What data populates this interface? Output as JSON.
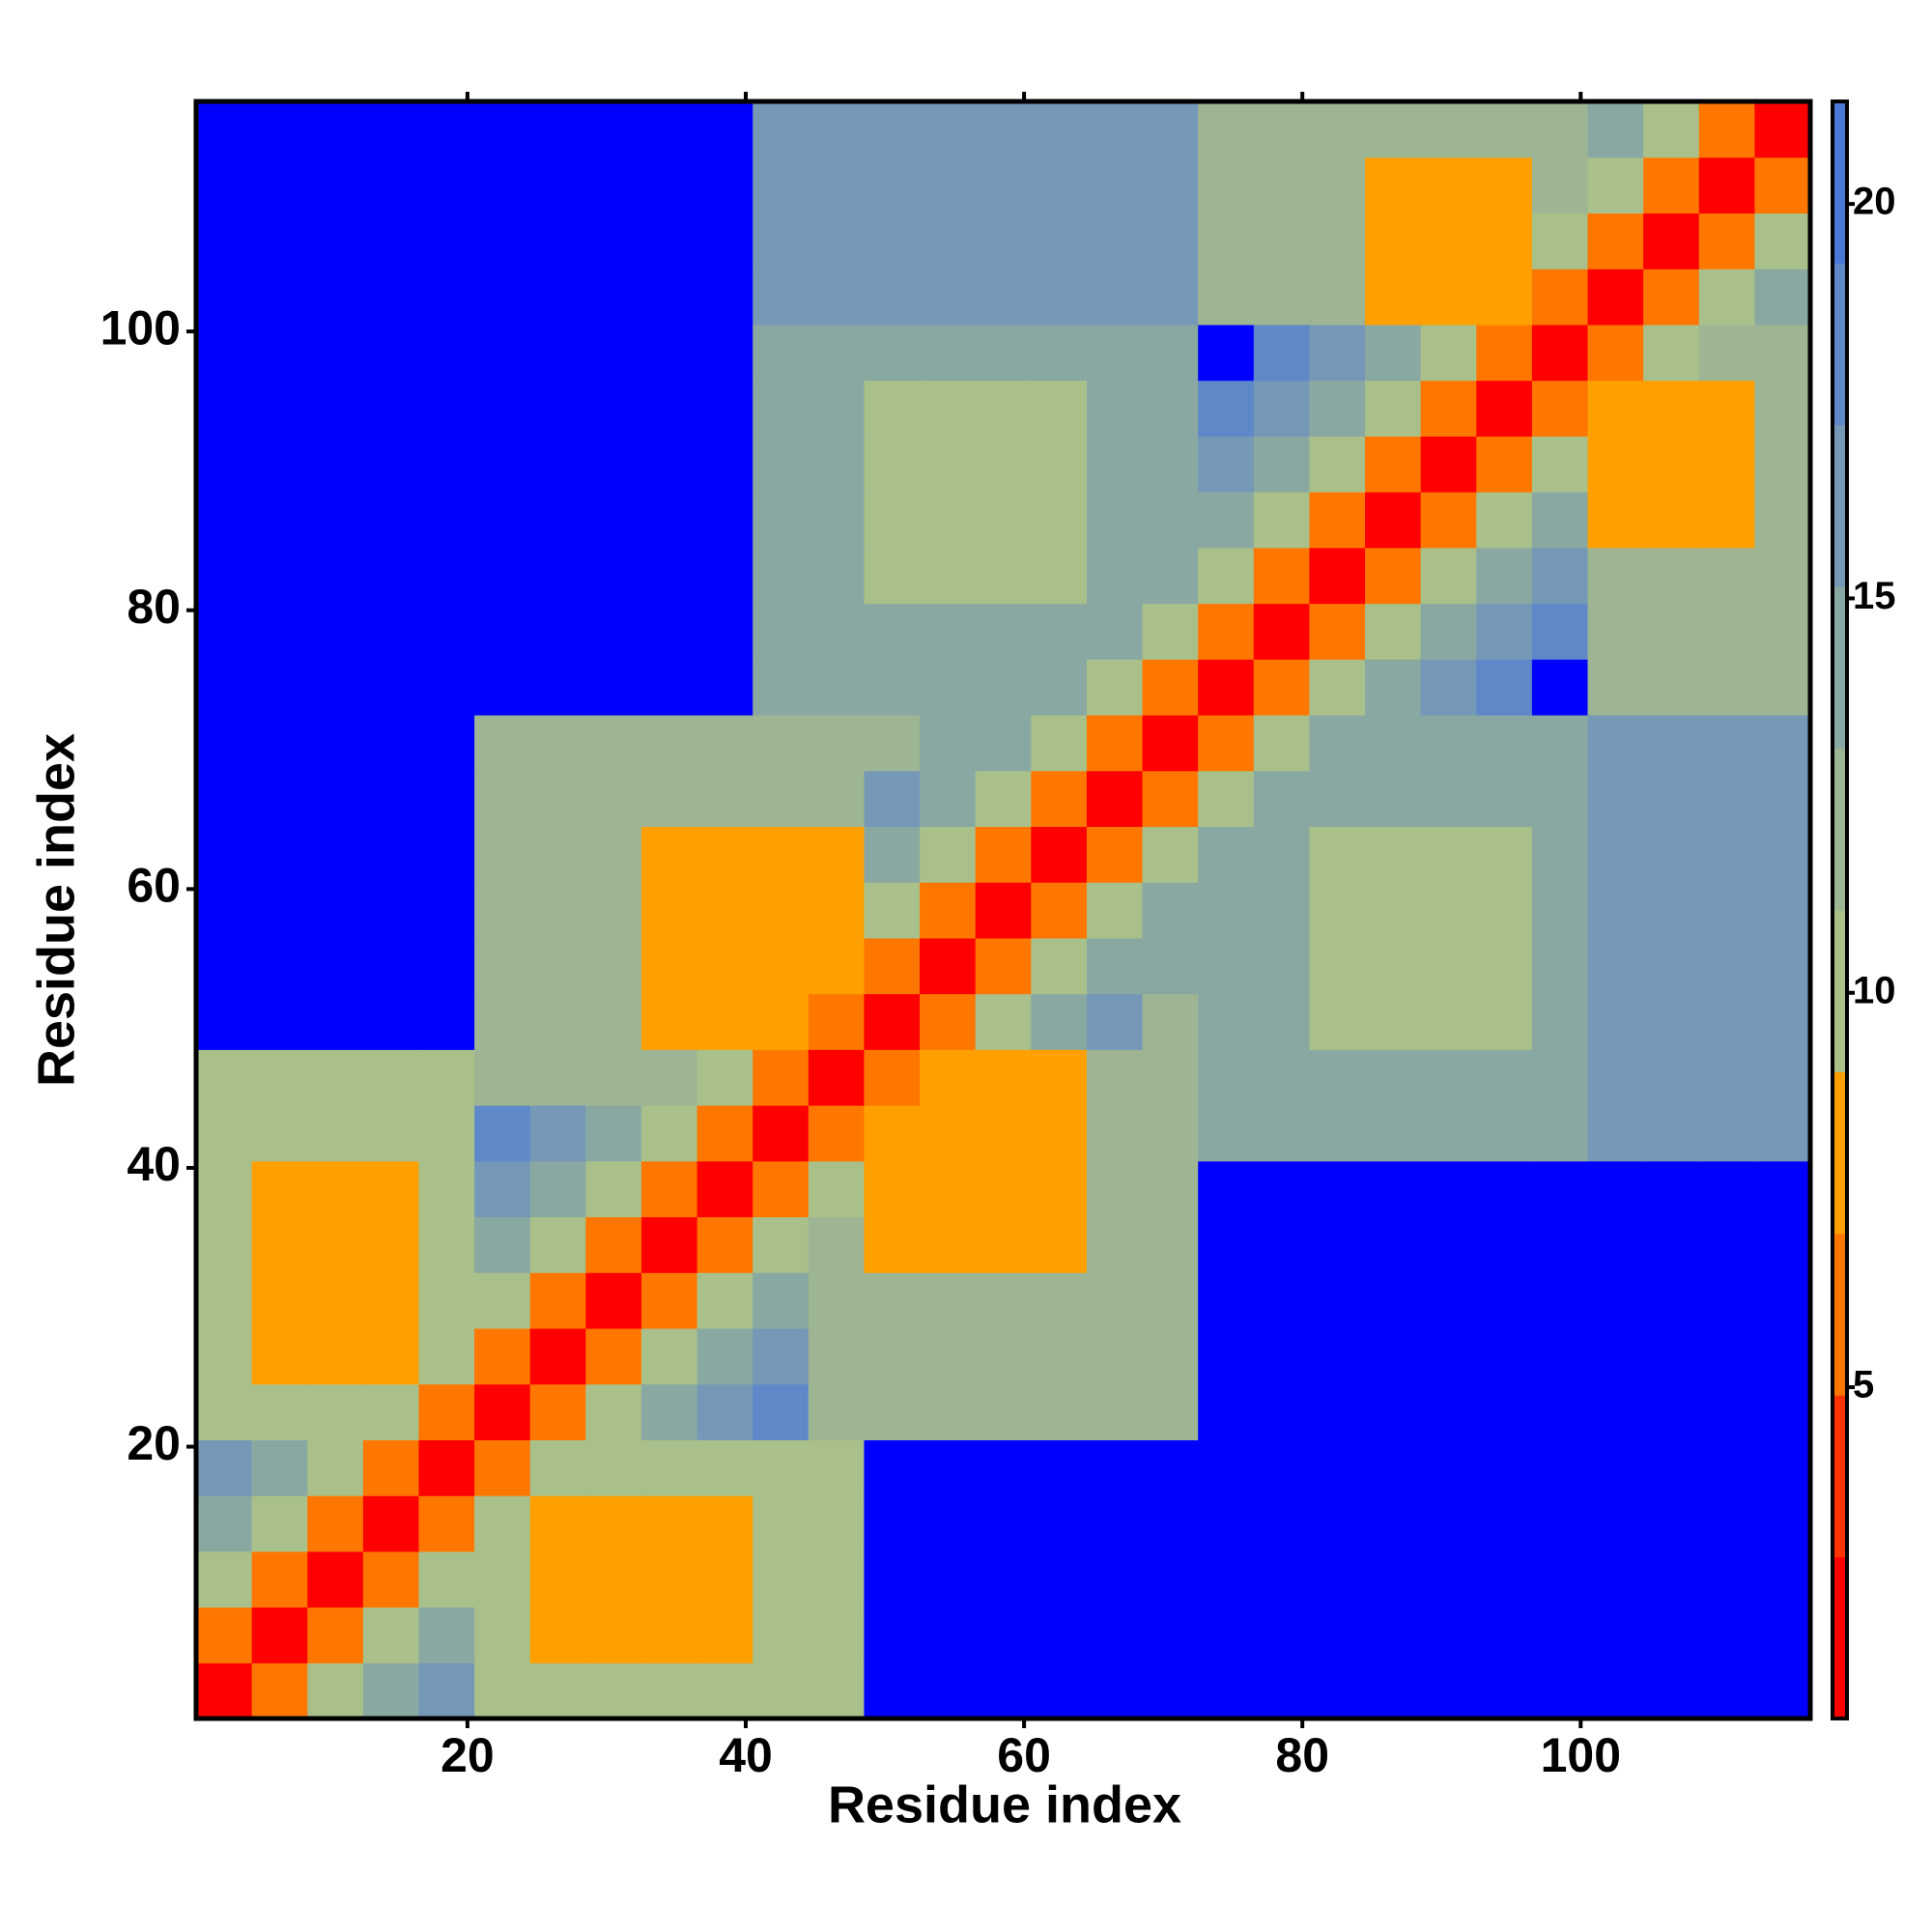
{
  "chart_data": {
    "type": "heatmap",
    "x_label": "Residue index",
    "y_label": "Residue index",
    "x": [
      2.5,
      6.5,
      10.5,
      14.5,
      18.5,
      22.5,
      26.5,
      30.5,
      34.5,
      38.5,
      42.5,
      46.5,
      50.5,
      54.5,
      58.5,
      62.5,
      66.5,
      70.5,
      74.5,
      78.5,
      82.5,
      86.5,
      90.5,
      94.5,
      98.5,
      102.5,
      106.5,
      110.5,
      114.5
    ],
    "y": [
      2.5,
      6.5,
      10.5,
      14.5,
      18.5,
      22.5,
      26.5,
      30.5,
      34.5,
      38.5,
      42.5,
      46.5,
      50.5,
      54.5,
      58.5,
      62.5,
      66.5,
      70.5,
      74.5,
      78.5,
      82.5,
      86.5,
      90.5,
      94.5,
      98.5,
      102.5,
      106.5,
      110.5,
      114.5
    ],
    "xlim": [
      0.5,
      116.5
    ],
    "ylim": [
      0.5,
      116.5
    ],
    "xticks": [
      20,
      40,
      60,
      80,
      100
    ],
    "yticks": [
      20,
      40,
      60,
      80,
      100
    ],
    "colorbar_lim": [
      0.8,
      21.3
    ],
    "colorbar_ticks": [
      5,
      10,
      15,
      20
    ],
    "colormap": [
      "#ff0000",
      "#ff3300",
      "#ff7700",
      "#ffa000",
      "#a9c08a",
      "#9db592",
      "#8aa8a2",
      "#7598b6",
      "#5f88c8",
      "#4a78d6"
    ],
    "over_color": "#0000ff",
    "values": [
      [
        2,
        6,
        10,
        14,
        17,
        11,
        11,
        11,
        11,
        11,
        11,
        11,
        22,
        22,
        22,
        22,
        22,
        22,
        22,
        22,
        22,
        22,
        22,
        22,
        22,
        22,
        22,
        22,
        22
      ],
      [
        6,
        2,
        6,
        10,
        14,
        11,
        8,
        8,
        8,
        8,
        11,
        11,
        22,
        22,
        22,
        22,
        22,
        22,
        22,
        22,
        22,
        22,
        22,
        22,
        22,
        22,
        22,
        22,
        22
      ],
      [
        10,
        6,
        2,
        6,
        10,
        11,
        8,
        8,
        8,
        8,
        11,
        11,
        22,
        22,
        22,
        22,
        22,
        22,
        22,
        22,
        22,
        22,
        22,
        22,
        22,
        22,
        22,
        22,
        22
      ],
      [
        14,
        10,
        6,
        2,
        6,
        10,
        8,
        8,
        8,
        8,
        11,
        11,
        22,
        22,
        22,
        22,
        22,
        22,
        22,
        22,
        22,
        22,
        22,
        22,
        22,
        22,
        22,
        22,
        22
      ],
      [
        17,
        14,
        10,
        6,
        2,
        6,
        10,
        11,
        11,
        11,
        11,
        11,
        22,
        22,
        22,
        22,
        22,
        22,
        22,
        22,
        22,
        22,
        22,
        22,
        22,
        22,
        22,
        22,
        22
      ],
      [
        11,
        11,
        11,
        10,
        6,
        2,
        6,
        10,
        14,
        17,
        19,
        13,
        13,
        13,
        13,
        13,
        13,
        13,
        22,
        22,
        22,
        22,
        22,
        22,
        22,
        22,
        22,
        22,
        22
      ],
      [
        11,
        8,
        8,
        8,
        10,
        6,
        2,
        6,
        10,
        14,
        17,
        13,
        13,
        13,
        13,
        13,
        13,
        13,
        22,
        22,
        22,
        22,
        22,
        22,
        22,
        22,
        22,
        22,
        22
      ],
      [
        11,
        8,
        8,
        8,
        11,
        10,
        6,
        2,
        6,
        10,
        14,
        13,
        13,
        13,
        13,
        13,
        13,
        13,
        22,
        22,
        22,
        22,
        22,
        22,
        22,
        22,
        22,
        22,
        22
      ],
      [
        11,
        8,
        8,
        8,
        11,
        14,
        10,
        6,
        2,
        6,
        10,
        13,
        9,
        9,
        9,
        9,
        13,
        13,
        22,
        22,
        22,
        22,
        22,
        22,
        22,
        22,
        22,
        22,
        22
      ],
      [
        11,
        8,
        8,
        8,
        11,
        17,
        14,
        10,
        6,
        2,
        6,
        10,
        9,
        9,
        9,
        9,
        13,
        13,
        22,
        22,
        22,
        22,
        22,
        22,
        22,
        22,
        22,
        22,
        22
      ],
      [
        11,
        11,
        11,
        11,
        11,
        19,
        17,
        14,
        10,
        6,
        2,
        6,
        9,
        9,
        9,
        9,
        13,
        13,
        14,
        14,
        14,
        14,
        14,
        14,
        14,
        17,
        17,
        17,
        17
      ],
      [
        11,
        11,
        11,
        11,
        11,
        13,
        13,
        13,
        13,
        10,
        6,
        2,
        6,
        9,
        9,
        9,
        13,
        13,
        14,
        14,
        14,
        14,
        14,
        14,
        14,
        17,
        17,
        17,
        17
      ],
      [
        22,
        22,
        22,
        22,
        22,
        13,
        13,
        13,
        9,
        9,
        9,
        6,
        2,
        6,
        10,
        14,
        17,
        13,
        14,
        14,
        11,
        11,
        11,
        11,
        14,
        17,
        17,
        17,
        17
      ],
      [
        22,
        22,
        22,
        22,
        22,
        13,
        13,
        13,
        9,
        9,
        9,
        9,
        6,
        2,
        6,
        10,
        14,
        14,
        14,
        14,
        11,
        11,
        11,
        11,
        14,
        17,
        17,
        17,
        17
      ],
      [
        22,
        22,
        22,
        22,
        22,
        13,
        13,
        13,
        9,
        9,
        9,
        9,
        10,
        6,
        2,
        6,
        10,
        14,
        14,
        14,
        11,
        11,
        11,
        11,
        14,
        17,
        17,
        17,
        17
      ],
      [
        22,
        22,
        22,
        22,
        22,
        13,
        13,
        13,
        9,
        9,
        9,
        9,
        14,
        10,
        6,
        2,
        6,
        10,
        14,
        14,
        11,
        11,
        11,
        11,
        14,
        17,
        17,
        17,
        17
      ],
      [
        22,
        22,
        22,
        22,
        22,
        13,
        13,
        13,
        13,
        13,
        13,
        13,
        17,
        14,
        10,
        6,
        2,
        6,
        10,
        14,
        14,
        14,
        14,
        14,
        14,
        17,
        17,
        17,
        17
      ],
      [
        22,
        22,
        22,
        22,
        22,
        13,
        13,
        13,
        13,
        13,
        13,
        13,
        13,
        14,
        14,
        10,
        6,
        2,
        6,
        10,
        14,
        14,
        14,
        14,
        14,
        17,
        17,
        17,
        17
      ],
      [
        22,
        22,
        22,
        22,
        22,
        22,
        22,
        22,
        22,
        22,
        14,
        14,
        14,
        14,
        14,
        14,
        10,
        6,
        2,
        6,
        10,
        14,
        17,
        19,
        22,
        13,
        13,
        13,
        13
      ],
      [
        22,
        22,
        22,
        22,
        22,
        22,
        22,
        22,
        22,
        22,
        14,
        14,
        14,
        14,
        14,
        14,
        14,
        10,
        6,
        2,
        6,
        10,
        14,
        17,
        19,
        13,
        13,
        13,
        13
      ],
      [
        22,
        22,
        22,
        22,
        22,
        22,
        22,
        22,
        22,
        22,
        14,
        14,
        11,
        11,
        11,
        11,
        14,
        14,
        10,
        6,
        2,
        6,
        10,
        14,
        17,
        13,
        13,
        13,
        13
      ],
      [
        22,
        22,
        22,
        22,
        22,
        22,
        22,
        22,
        22,
        22,
        14,
        14,
        11,
        11,
        11,
        11,
        14,
        14,
        14,
        10,
        6,
        2,
        6,
        10,
        14,
        9,
        9,
        9,
        13
      ],
      [
        22,
        22,
        22,
        22,
        22,
        22,
        22,
        22,
        22,
        22,
        14,
        14,
        11,
        11,
        11,
        11,
        14,
        14,
        17,
        14,
        10,
        6,
        2,
        6,
        10,
        9,
        9,
        9,
        13
      ],
      [
        22,
        22,
        22,
        22,
        22,
        22,
        22,
        22,
        22,
        22,
        14,
        14,
        11,
        11,
        11,
        11,
        14,
        14,
        19,
        17,
        14,
        10,
        6,
        2,
        6,
        9,
        9,
        9,
        13
      ],
      [
        22,
        22,
        22,
        22,
        22,
        22,
        22,
        22,
        22,
        22,
        14,
        14,
        14,
        14,
        14,
        14,
        14,
        14,
        22,
        19,
        17,
        14,
        10,
        6,
        2,
        6,
        10,
        13,
        13
      ],
      [
        22,
        22,
        22,
        22,
        22,
        22,
        22,
        22,
        22,
        22,
        17,
        17,
        17,
        17,
        17,
        17,
        17,
        17,
        13,
        13,
        13,
        9,
        9,
        9,
        6,
        2,
        6,
        10,
        14
      ],
      [
        22,
        22,
        22,
        22,
        22,
        22,
        22,
        22,
        22,
        22,
        17,
        17,
        17,
        17,
        17,
        17,
        17,
        17,
        13,
        13,
        13,
        9,
        9,
        9,
        10,
        6,
        2,
        6,
        10
      ],
      [
        22,
        22,
        22,
        22,
        22,
        22,
        22,
        22,
        22,
        22,
        17,
        17,
        17,
        17,
        17,
        17,
        17,
        17,
        13,
        13,
        13,
        9,
        9,
        9,
        13,
        10,
        6,
        2,
        6
      ],
      [
        22,
        22,
        22,
        22,
        22,
        22,
        22,
        22,
        22,
        22,
        17,
        17,
        17,
        17,
        17,
        17,
        17,
        17,
        13,
        13,
        13,
        13,
        13,
        13,
        13,
        14,
        10,
        6,
        2
      ]
    ]
  }
}
